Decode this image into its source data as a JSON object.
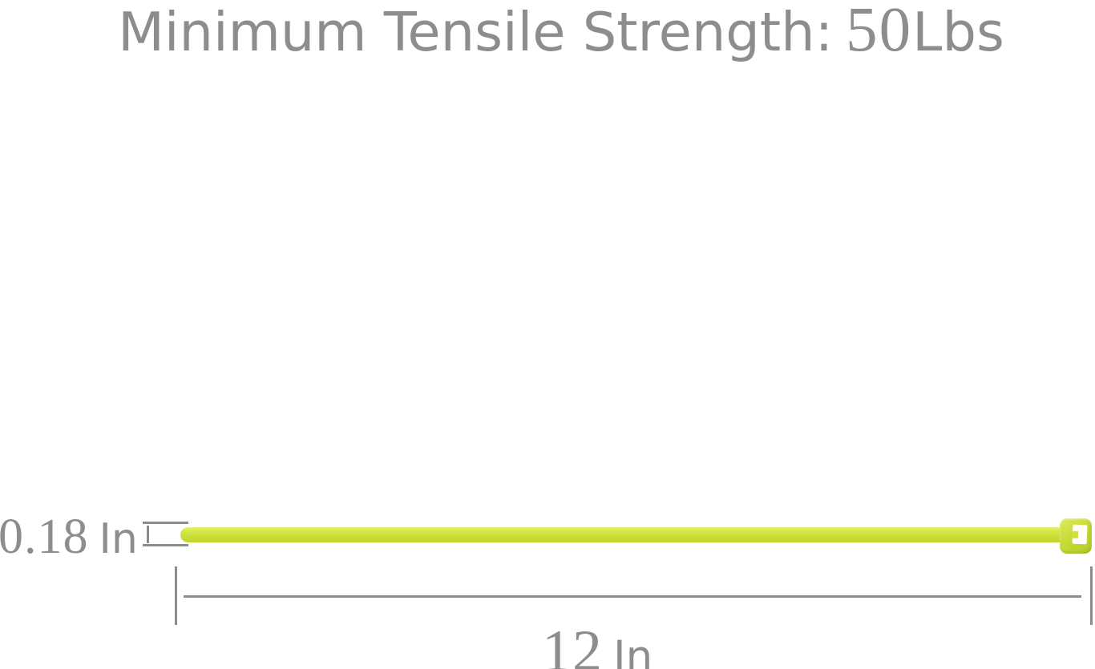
{
  "title": {
    "label": "Minimum Tensile Strength:",
    "value": "50",
    "unit": "Lbs"
  },
  "width_dimension": {
    "value": "0.18",
    "unit": "In"
  },
  "length_dimension": {
    "value": "12",
    "unit": "In"
  },
  "colors": {
    "text_gray": "#8d8d8d",
    "line_gray": "#8c8c8c",
    "tie_main": "#cee23b",
    "tie_light": "#e6f277",
    "tie_dark": "#bed22e",
    "tie_head": "#c8dc36",
    "slot_white": "#ffffff",
    "background": "#ffffff"
  }
}
